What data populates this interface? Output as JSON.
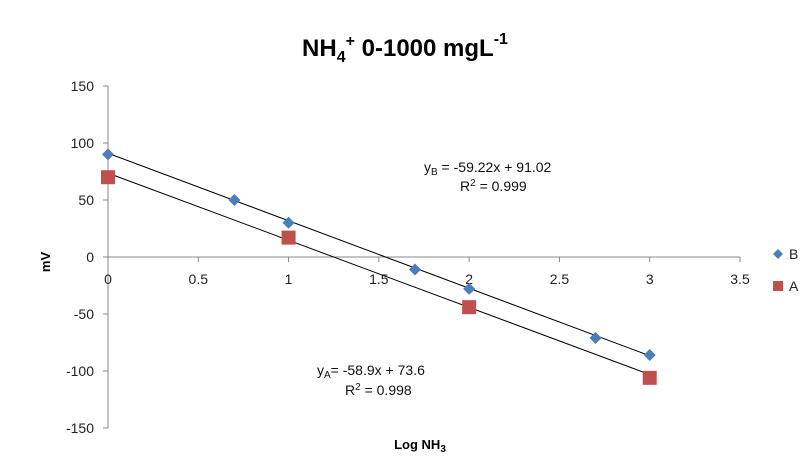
{
  "chart_data": {
    "type": "scatter",
    "title": {
      "prefix": "NH",
      "sub": "4",
      "sup": "+",
      "middle": " 0-1000 mgL",
      "sup2": "-1"
    },
    "xlabel": {
      "prefix": "Log NH",
      "sub": "3"
    },
    "ylabel": "mV",
    "xlim": [
      0,
      3.5
    ],
    "ylim": [
      -150,
      150
    ],
    "x_ticks": [
      "0",
      "0.5",
      "1",
      "1.5",
      "2",
      "2.5",
      "3",
      "3.5"
    ],
    "y_ticks": [
      "150",
      "100",
      "50",
      "0",
      "-50",
      "-100",
      "-150"
    ],
    "grid": false,
    "legend_position": "right",
    "series": [
      {
        "name": "B",
        "marker": "diamond",
        "color": "#4a7ebb",
        "points": [
          {
            "x": 0,
            "y": 90
          },
          {
            "x": 0.7,
            "y": 50
          },
          {
            "x": 1,
            "y": 30
          },
          {
            "x": 1.7,
            "y": -11
          },
          {
            "x": 2,
            "y": -28
          },
          {
            "x": 2.7,
            "y": -71
          },
          {
            "x": 3,
            "y": -86
          }
        ],
        "trendline": {
          "slope": -59.22,
          "intercept": 91.02
        },
        "equation": {
          "y": "y",
          "sub": "B",
          "rest": " = -59.22x + 91.02"
        },
        "r2": {
          "r": "R",
          "sup": "2",
          "rest": " = 0.999"
        }
      },
      {
        "name": "A",
        "marker": "square",
        "color": "#c0504d",
        "points": [
          {
            "x": 0,
            "y": 70
          },
          {
            "x": 1,
            "y": 17
          },
          {
            "x": 2,
            "y": -44
          },
          {
            "x": 3,
            "y": -106
          }
        ],
        "trendline": {
          "slope": -58.9,
          "intercept": 73.6
        },
        "equation": {
          "y": "y",
          "sub": "A",
          "rest": "= -58.9x + 73.6"
        },
        "r2": {
          "r": "R",
          "sup": "2",
          "rest": " = 0.998"
        }
      }
    ]
  }
}
